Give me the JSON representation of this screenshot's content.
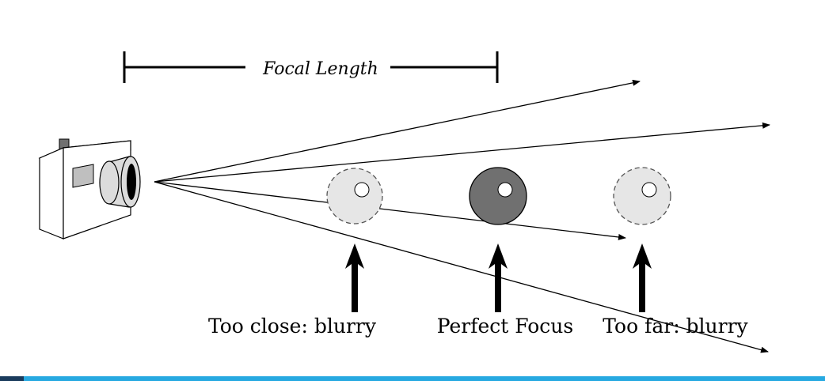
{
  "focal_length_label": "Focal Length",
  "labels": {
    "too_close": "Too close: blurry",
    "perfect": "Perfect Focus",
    "too_far": "Too far: blurry"
  },
  "colors": {
    "ink": "#000000",
    "blurry_fill": "#e6e6e6",
    "focus_fill": "#707070",
    "camera_body": "#ffffff",
    "camera_window": "#bfbfbf",
    "lens_fill": "#dcdcdc",
    "bar_dark": "#1a3b5c",
    "bar_light": "#27a9e1"
  },
  "icons": {
    "camera": "camera-icon",
    "arrow": "arrow-up-icon"
  }
}
